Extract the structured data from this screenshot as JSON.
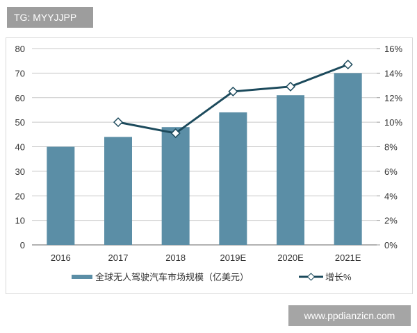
{
  "watermark_top": "TG: MYYJJPP",
  "watermark_bottom": "www.ppdianzicn.com",
  "chart_data": {
    "type": "bar+line",
    "categories": [
      "2016",
      "2017",
      "2018",
      "2019E",
      "2020E",
      "2021E"
    ],
    "series": [
      {
        "name": "全球无人驾驶汽车市场规模（亿美元）",
        "type": "bar",
        "axis": "left",
        "color": "#5b8ea6",
        "values": [
          40,
          44,
          48,
          54,
          61,
          70
        ]
      },
      {
        "name": "增长%",
        "type": "line",
        "axis": "right",
        "color": "#1c4a5c",
        "marker": "diamond-open",
        "values": [
          null,
          10,
          9.1,
          12.5,
          12.9,
          14.7
        ]
      }
    ],
    "y_left": {
      "range": [
        0,
        80
      ],
      "ticks": [
        "0",
        "10",
        "20",
        "30",
        "40",
        "50",
        "60",
        "70",
        "80"
      ]
    },
    "y_right": {
      "range": [
        0,
        16
      ],
      "ticks": [
        "0%",
        "2%",
        "4%",
        "6%",
        "8%",
        "10%",
        "12%",
        "14%",
        "16%"
      ]
    },
    "grid": true,
    "legend_position": "bottom"
  }
}
